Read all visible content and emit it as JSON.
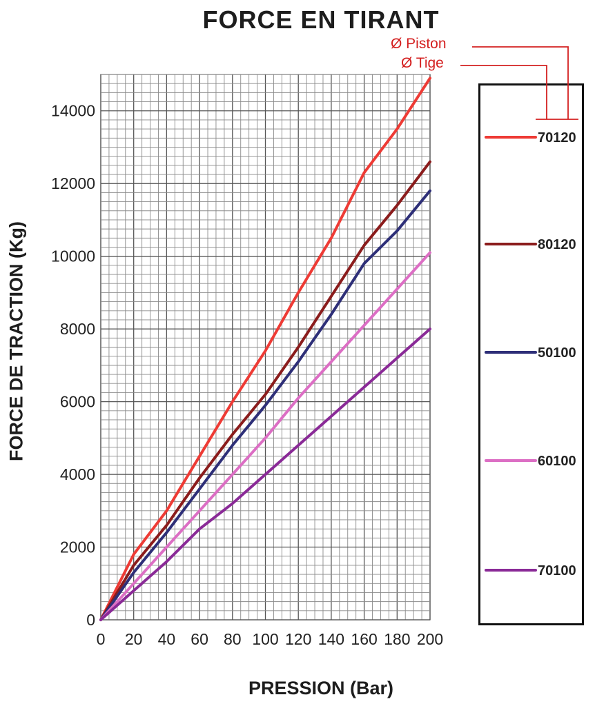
{
  "chart_data": {
    "type": "line",
    "title": "FORCE EN TIRANT",
    "xlabel": "PRESSION (Bar)",
    "ylabel": "FORCE DE TRACTION (Kg)",
    "xlim": [
      0,
      200
    ],
    "ylim": [
      0,
      15000
    ],
    "x_ticks": [
      "0",
      "20",
      "40",
      "60",
      "80",
      "100",
      "120",
      "140",
      "160",
      "180",
      "200"
    ],
    "y_ticks": [
      "0",
      "2000",
      "4000",
      "6000",
      "8000",
      "10000",
      "12000",
      "14000"
    ],
    "grid": true,
    "legend_position": "right",
    "annotations": [
      "Ø Piston",
      "Ø Tige"
    ],
    "x": [
      0,
      20,
      40,
      60,
      80,
      100,
      120,
      140,
      160,
      180,
      200
    ],
    "series": [
      {
        "name": "70120",
        "color": "#ee3b35",
        "values": [
          0,
          1800,
          3000,
          4500,
          6000,
          7400,
          9000,
          10500,
          12300,
          13500,
          14900
        ]
      },
      {
        "name": "80120",
        "color": "#8b1c1c",
        "values": [
          0,
          1500,
          2600,
          3900,
          5100,
          6200,
          7500,
          8900,
          10300,
          11400,
          12600
        ]
      },
      {
        "name": "50100",
        "color": "#2e2f78",
        "values": [
          0,
          1300,
          2400,
          3600,
          4800,
          5900,
          7100,
          8400,
          9800,
          10700,
          11800
        ]
      },
      {
        "name": "60100",
        "color": "#dc6ec4",
        "values": [
          0,
          1000,
          2000,
          3000,
          4000,
          5000,
          6100,
          7100,
          8100,
          9100,
          10100
        ]
      },
      {
        "name": "70100",
        "color": "#8a2a97",
        "values": [
          0,
          800,
          1600,
          2500,
          3200,
          4000,
          4800,
          5600,
          6400,
          7200,
          8000
        ]
      }
    ]
  }
}
